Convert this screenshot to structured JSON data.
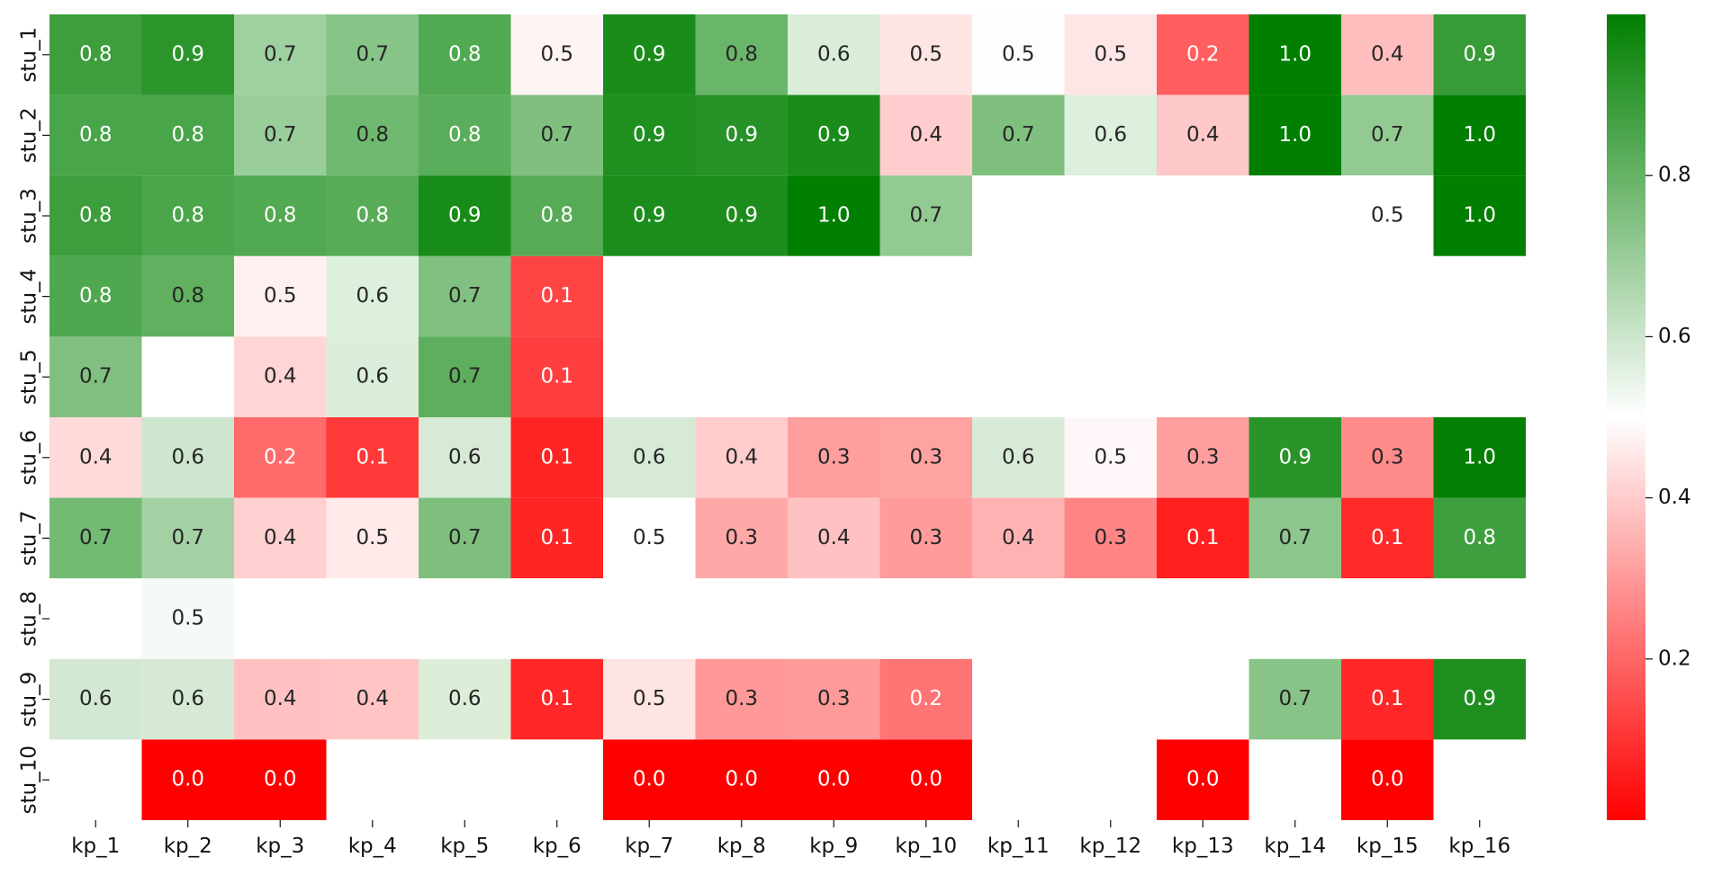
{
  "chart_data": {
    "type": "heatmap",
    "title": "",
    "xlabel": "",
    "ylabel": "",
    "x_categories": [
      "kp_1",
      "kp_2",
      "kp_3",
      "kp_4",
      "kp_5",
      "kp_6",
      "kp_7",
      "kp_8",
      "kp_9",
      "kp_10",
      "kp_11",
      "kp_12",
      "kp_13",
      "kp_14",
      "kp_15",
      "kp_16"
    ],
    "y_categories": [
      "stu_1",
      "stu_2",
      "stu_3",
      "stu_4",
      "stu_5",
      "stu_6",
      "stu_7",
      "stu_8",
      "stu_9",
      "stu_10"
    ],
    "values": [
      [
        0.8,
        0.9,
        0.7,
        0.7,
        0.8,
        0.5,
        0.9,
        0.8,
        0.6,
        0.5,
        0.5,
        0.5,
        0.2,
        1.0,
        0.4,
        0.9
      ],
      [
        0.8,
        0.8,
        0.7,
        0.8,
        0.8,
        0.7,
        0.9,
        0.9,
        0.9,
        0.4,
        0.7,
        0.6,
        0.4,
        1.0,
        0.7,
        1.0
      ],
      [
        0.8,
        0.8,
        0.8,
        0.8,
        0.9,
        0.8,
        0.9,
        0.9,
        1.0,
        0.7,
        null,
        null,
        null,
        null,
        0.5,
        1.0
      ],
      [
        0.8,
        0.8,
        0.5,
        0.6,
        0.7,
        0.1,
        null,
        null,
        null,
        null,
        null,
        null,
        null,
        null,
        null,
        null
      ],
      [
        0.7,
        null,
        0.4,
        0.6,
        0.7,
        0.1,
        null,
        null,
        null,
        null,
        null,
        null,
        null,
        null,
        null,
        null
      ],
      [
        0.4,
        0.6,
        0.2,
        0.1,
        0.6,
        0.1,
        0.6,
        0.4,
        0.3,
        0.3,
        0.6,
        0.5,
        0.3,
        0.9,
        0.3,
        1.0
      ],
      [
        0.7,
        0.7,
        0.4,
        0.5,
        0.7,
        0.1,
        0.5,
        0.3,
        0.4,
        0.3,
        0.4,
        0.3,
        0.1,
        0.7,
        0.1,
        0.8
      ],
      [
        null,
        0.5,
        null,
        null,
        null,
        null,
        null,
        null,
        null,
        null,
        null,
        null,
        null,
        null,
        null,
        null
      ],
      [
        0.6,
        0.6,
        0.4,
        0.4,
        0.6,
        0.1,
        0.5,
        0.3,
        0.3,
        0.2,
        null,
        null,
        null,
        0.7,
        0.1,
        0.9
      ],
      [
        null,
        0.0,
        0.0,
        null,
        null,
        null,
        0.0,
        0.0,
        0.0,
        0.0,
        null,
        null,
        0.0,
        null,
        0.0,
        null
      ]
    ],
    "cell_colors": [
      [
        "#3c9e3c",
        "#2b952b",
        "#9fd09f",
        "#87c487",
        "#51a951",
        "#fef4f4",
        "#198c19",
        "#69b569",
        "#d9edd9",
        "#ffe4e4",
        "#fcfdfc",
        "#ffe6e6",
        "#ff5e5e",
        "#007f00",
        "#ffbebe",
        "#379b37"
      ],
      [
        "#49a549",
        "#49a549",
        "#99cd99",
        "#6fb86f",
        "#5aad5a",
        "#7fc07f",
        "#1f8f1f",
        "#279227",
        "#198c19",
        "#ffcdcd",
        "#7fc07f",
        "#ddefdd",
        "#ffc8c8",
        "#007f00",
        "#92ca92",
        "#007f00"
      ],
      [
        "#3c9e3c",
        "#4ba64b",
        "#51a951",
        "#58ac58",
        "#188c18",
        "#57ab57",
        "#1c8d1c",
        "#1c8d1c",
        "#007f00",
        "#92ca92",
        "#ffffff",
        "#ffffff",
        "#ffffff",
        "#ffffff",
        "#ffffff",
        "#007f00"
      ],
      [
        "#4fa84f",
        "#60b060",
        "#fff0f0",
        "#ddefdd",
        "#80c080",
        "#ff4444",
        "#ffffff",
        "#ffffff",
        "#ffffff",
        "#ffffff",
        "#ffffff",
        "#ffffff",
        "#ffffff",
        "#ffffff",
        "#ffffff",
        "#ffffff"
      ],
      [
        "#81c081",
        "#ffffff",
        "#ffd5d5",
        "#dbeddb",
        "#5dae5d",
        "#ff3f3f",
        "#ffffff",
        "#ffffff",
        "#ffffff",
        "#ffffff",
        "#ffffff",
        "#ffffff",
        "#ffffff",
        "#ffffff",
        "#ffffff",
        "#ffffff"
      ],
      [
        "#ffdada",
        "#cde6cd",
        "#ff6a6a",
        "#ff3838",
        "#d6ead6",
        "#ff2424",
        "#d6ead6",
        "#ffcccc",
        "#ff9e9e",
        "#ffa2a2",
        "#d8ebd8",
        "#fff7f7",
        "#ff9e9e",
        "#2a942a",
        "#ff8b8b",
        "#037f03"
      ],
      [
        "#73ba73",
        "#a4d1a4",
        "#ffd0d0",
        "#ffe9e9",
        "#7ebf7e",
        "#ff2525",
        "#ffffff",
        "#ffa8a8",
        "#ffc1c1",
        "#ff9b9b",
        "#ffb2b2",
        "#ff8585",
        "#ff1f1f",
        "#8ec78e",
        "#ff2a2a",
        "#3e9f3e"
      ],
      [
        "#ffffff",
        "#f6faf6",
        "#ffffff",
        "#ffffff",
        "#ffffff",
        "#ffffff",
        "#ffffff",
        "#ffffff",
        "#ffffff",
        "#ffffff",
        "#ffffff",
        "#ffffff",
        "#ffffff",
        "#ffffff",
        "#ffffff",
        "#ffffff"
      ],
      [
        "#d3e8d3",
        "#d5e9d5",
        "#ffc1c1",
        "#ffc5c5",
        "#dcedd8",
        "#ff2727",
        "#ffe4e4",
        "#ff9999",
        "#ff9a9a",
        "#ff7474",
        "#ffffff",
        "#ffffff",
        "#ffffff",
        "#88c388",
        "#ff2727",
        "#1e8e1e"
      ],
      [
        "#ffffff",
        "#ff0000",
        "#ff0000",
        "#ffffff",
        "#ffffff",
        "#ffffff",
        "#ff0000",
        "#ff0000",
        "#ff0000",
        "#ff0000",
        "#ffffff",
        "#ffffff",
        "#ff0000",
        "#ffffff",
        "#ff0000",
        "#ffffff"
      ]
    ],
    "colormap": {
      "low": "#ff0000",
      "mid": "#ffffff",
      "high": "#007f00"
    },
    "colorbar": {
      "range": [
        0.0,
        1.0
      ],
      "ticks": [
        0.2,
        0.4,
        0.6,
        0.8
      ]
    },
    "annotations": true,
    "grid": false,
    "legend": "colorbar-right"
  }
}
